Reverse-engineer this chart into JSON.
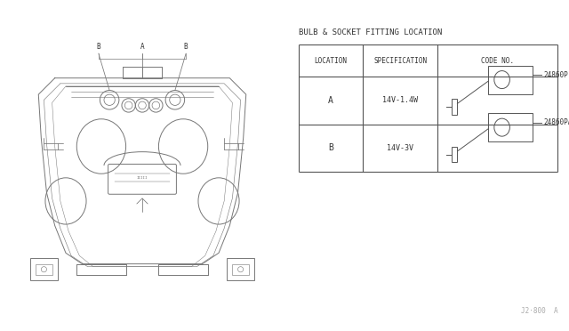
{
  "title": "BULB & SOCKET FITTING LOCATION",
  "table_headers": [
    "LOCATION",
    "SPECIFICATION",
    "CODE NO."
  ],
  "rows": [
    {
      "location": "A",
      "spec": "14V-1.4W",
      "code": "24860P"
    },
    {
      "location": "B",
      "spec": "14V-3V",
      "code": "24860PA"
    }
  ],
  "footnote": "J2·800  A",
  "bg_color": "#ffffff",
  "line_color": "#555555",
  "text_color": "#333333",
  "diagram_line_color": "#777777"
}
